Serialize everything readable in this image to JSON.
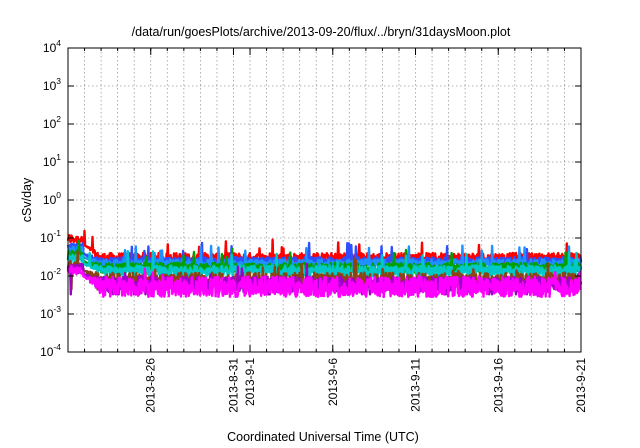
{
  "chart_data": {
    "type": "line",
    "title": "/data/run/goesPlots/archive/2013-09-20/flux/../bryn/31daysMoon.plot",
    "xlabel": "Coordinated Universal Time (UTC)",
    "ylabel": "cSv/day",
    "yscale": "log",
    "ylim": [
      0.0001,
      10000
    ],
    "y_ticks": [
      {
        "base": "10",
        "exp": "-4",
        "value": 0.0001
      },
      {
        "base": "10",
        "exp": "-3",
        "value": 0.001
      },
      {
        "base": "10",
        "exp": "-2",
        "value": 0.01
      },
      {
        "base": "10",
        "exp": "-1",
        "value": 0.1
      },
      {
        "base": "10",
        "exp": "0",
        "value": 1
      },
      {
        "base": "10",
        "exp": "1",
        "value": 10
      },
      {
        "base": "10",
        "exp": "2",
        "value": 100
      },
      {
        "base": "10",
        "exp": "3",
        "value": 1000
      },
      {
        "base": "10",
        "exp": "4",
        "value": 10000
      }
    ],
    "xlim": [
      "2013-08-21",
      "2013-09-21"
    ],
    "x_ticks": [
      "2013-8-26",
      "2013-8-31",
      "2013-9-1",
      "2013-9-6",
      "2013-9-11",
      "2013-9-16",
      "2013-9-21"
    ],
    "grid": true,
    "legend": "none",
    "series": [
      {
        "color": "#ff0000",
        "base": 0.03,
        "amp": 1.35,
        "init": 0.095
      },
      {
        "color": "#2f4fff",
        "base": 0.024,
        "amp": 1.3,
        "init": 0.055
      },
      {
        "color": "#1e90ff",
        "base": 0.021,
        "amp": 1.3,
        "init": 0.045
      },
      {
        "color": "#00a000",
        "base": 0.0165,
        "amp": 1.35,
        "init": 0.035
      },
      {
        "color": "#00c8c8",
        "base": 0.0135,
        "amp": 1.4,
        "init": 0.03
      },
      {
        "color": "#8b4513",
        "base": 0.008,
        "amp": 1.55,
        "init": 0.02
      },
      {
        "color": "#a000c8",
        "base": 0.006,
        "amp": 1.6,
        "init": 0.016
      },
      {
        "color": "#ff00ff",
        "base": 0.0052,
        "amp": 1.85,
        "init": 0.014
      }
    ]
  }
}
